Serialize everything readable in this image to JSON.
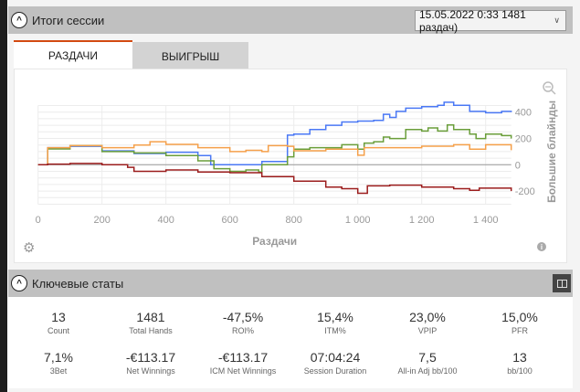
{
  "session": {
    "title": "Итоги сессии",
    "selector": "15.05.2022 0:33 1481 раздач)"
  },
  "tabs": [
    {
      "label": "РАЗДАЧИ",
      "active": true
    },
    {
      "label": "ВЫИГРЫШ",
      "active": false
    }
  ],
  "chart_data": {
    "type": "line",
    "xlabel": "Раздачи",
    "ylabel": "Большие блайнды",
    "xlim": [
      0,
      1480
    ],
    "ylim": [
      -300,
      480
    ],
    "x_ticks": [
      0,
      200,
      400,
      600,
      800,
      1000,
      1200,
      1400
    ],
    "x_tick_labels": [
      "0",
      "200",
      "400",
      "600",
      "800",
      "1 000",
      "1 200",
      "1 400"
    ],
    "y_ticks": [
      -200,
      0,
      200,
      400
    ],
    "y_tick_labels": [
      "-200",
      "0",
      "200",
      "400"
    ],
    "grid": true,
    "series": [
      {
        "name": "blue",
        "color": "#4a78f5",
        "x": [
          0,
          20,
          30,
          100,
          200,
          300,
          400,
          500,
          540,
          600,
          680,
          700,
          780,
          800,
          850,
          900,
          950,
          1000,
          1050,
          1080,
          1100,
          1120,
          1150,
          1200,
          1250,
          1270,
          1300,
          1350,
          1400,
          1450,
          1480
        ],
        "y": [
          0,
          0,
          130,
          140,
          105,
          85,
          95,
          70,
          0,
          0,
          0,
          25,
          225,
          233,
          268,
          300,
          325,
          332,
          337,
          383,
          360,
          406,
          430,
          441,
          452,
          475,
          452,
          406,
          395,
          406,
          400
        ]
      },
      {
        "name": "green",
        "color": "#6a9e3a",
        "x": [
          0,
          20,
          30,
          100,
          200,
          300,
          400,
          500,
          550,
          600,
          650,
          690,
          700,
          780,
          800,
          850,
          900,
          950,
          1000,
          1020,
          1050,
          1080,
          1100,
          1150,
          1200,
          1220,
          1250,
          1280,
          1300,
          1350,
          1370,
          1400,
          1450,
          1480
        ],
        "y": [
          0,
          0,
          120,
          145,
          100,
          90,
          70,
          30,
          -30,
          -50,
          -40,
          -55,
          0,
          60,
          118,
          130,
          130,
          152,
          118,
          164,
          175,
          210,
          199,
          268,
          256,
          280,
          256,
          302,
          268,
          233,
          199,
          233,
          222,
          199
        ]
      },
      {
        "name": "orange",
        "color": "#f5a04a",
        "x": [
          0,
          20,
          30,
          100,
          200,
          300,
          350,
          400,
          500,
          600,
          650,
          700,
          720,
          780,
          800,
          900,
          1000,
          1020,
          1100,
          1200,
          1300,
          1350,
          1400,
          1480
        ],
        "y": [
          0,
          0,
          130,
          145,
          130,
          150,
          175,
          155,
          130,
          100,
          110,
          100,
          145,
          140,
          106,
          118,
          72,
          130,
          130,
          141,
          152,
          118,
          152,
          111
        ]
      },
      {
        "name": "darkred",
        "color": "#9b1c1c",
        "x": [
          0,
          30,
          100,
          200,
          280,
          300,
          400,
          500,
          600,
          700,
          800,
          900,
          950,
          1000,
          1030,
          1100,
          1200,
          1300,
          1350,
          1380,
          1420,
          1480
        ],
        "y": [
          0,
          5,
          10,
          0,
          -20,
          -50,
          -40,
          -55,
          -60,
          -90,
          -125,
          -170,
          -182,
          -217,
          -160,
          -155,
          -170,
          -182,
          -194,
          -178,
          -178,
          -200
        ]
      }
    ]
  },
  "keystats": {
    "title": "Ключевые статы",
    "items": [
      {
        "value": "13",
        "label": "Count"
      },
      {
        "value": "1481",
        "label": "Total Hands"
      },
      {
        "value": "-47,5%",
        "label": "ROI%"
      },
      {
        "value": "15,4%",
        "label": "ITM%"
      },
      {
        "value": "23,0%",
        "label": "VPIP"
      },
      {
        "value": "15,0%",
        "label": "PFR"
      },
      {
        "value": "7,1%",
        "label": "3Bet"
      },
      {
        "value": "-€113.17",
        "label": "Net Winnings"
      },
      {
        "value": "-€113.17",
        "label": "ICM Net Winnings"
      },
      {
        "value": "07:04:24",
        "label": "Session Duration"
      },
      {
        "value": "7,5",
        "label": "All-in Adj bb/100"
      },
      {
        "value": "13",
        "label": "bb/100"
      }
    ]
  }
}
